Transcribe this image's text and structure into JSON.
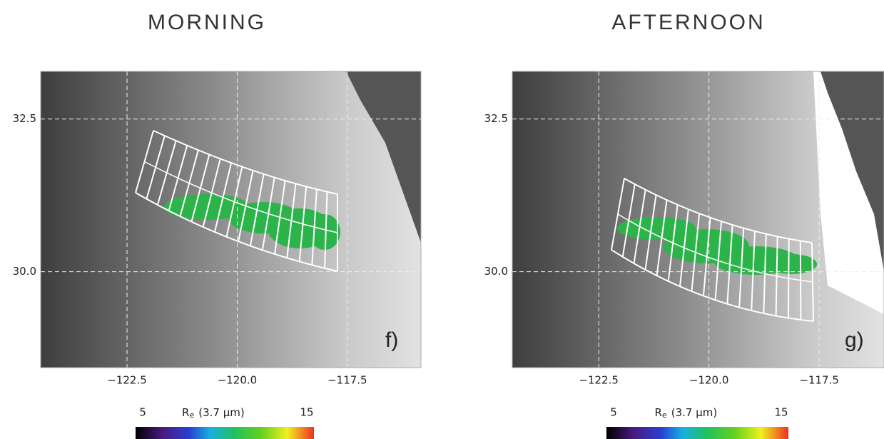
{
  "chart_data": [
    {
      "type": "map",
      "title": "MORNING",
      "panel_label": "f)",
      "xlim": [
        -124.46,
        -115.83
      ],
      "ylim": [
        28.43,
        33.28
      ],
      "xticks": [
        {
          "value": -122.5,
          "label": "−122.5"
        },
        {
          "value": -120,
          "label": "−120.0"
        },
        {
          "value": -117.5,
          "label": "−117.5"
        }
      ],
      "yticks": [
        {
          "value": 30,
          "label": "30.0"
        },
        32.5
      ],
      "colorbar": {
        "symbol": "R",
        "subscript": "e",
        "unit": "(3.7 μm)",
        "ticks": [
          5,
          15
        ]
      }
    },
    {
      "type": "map",
      "title": "AFTERNOON",
      "panel_label": "g)",
      "xlim": [
        -124.46,
        -116.03
      ],
      "ylim": [
        28.43,
        33.28
      ],
      "xticks": [
        {
          "value": -122.5,
          "label": "−122.5"
        },
        {
          "value": -120,
          "label": "−120.0"
        },
        {
          "value": -117.5,
          "label": "−117.5"
        }
      ],
      "yticks": [
        {
          "value": 30,
          "label": "30.0"
        },
        32.5
      ],
      "colorbar": {
        "symbol": "R",
        "subscript": "e",
        "unit": "(3.7 μm)",
        "ticks": [
          5,
          15
        ]
      }
    }
  ]
}
